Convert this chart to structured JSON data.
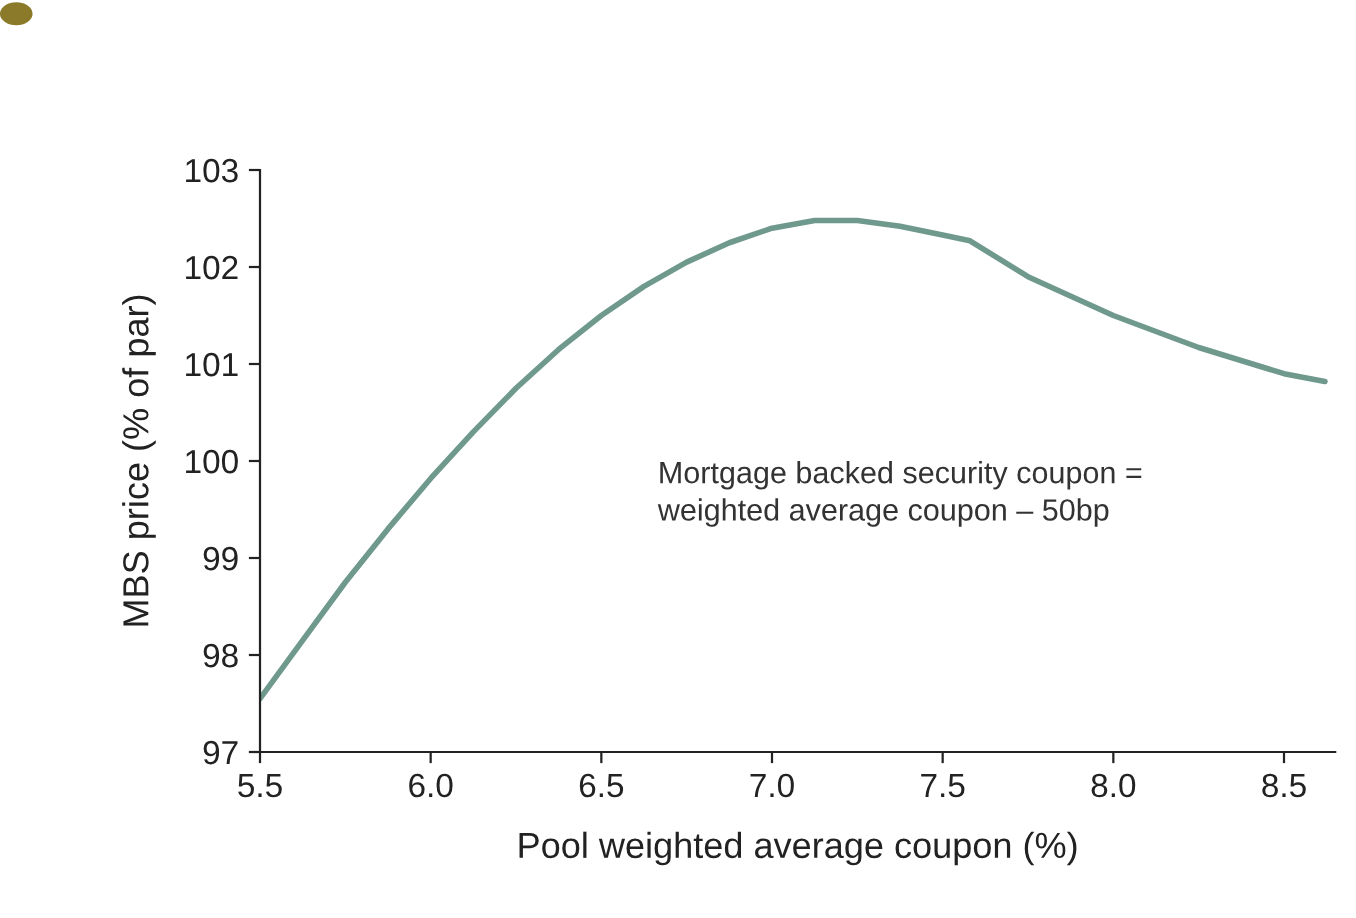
{
  "chart_data": {
    "type": "line",
    "xlabel": "Pool weighted average coupon (%)",
    "ylabel": "MBS price (% of par)",
    "annotations": [
      "Mortgage backed security coupon =\nweighted average coupon – 50bp"
    ],
    "x": [
      5.5,
      5.625,
      5.75,
      5.875,
      6.0,
      6.125,
      6.25,
      6.375,
      6.5,
      6.625,
      6.75,
      6.875,
      7.0,
      7.125,
      7.25,
      7.375,
      7.5,
      7.58,
      7.75,
      8.0,
      8.25,
      8.5,
      8.62
    ],
    "series": [
      {
        "color": "#6f998c",
        "values": [
          97.55,
          98.15,
          98.75,
          99.3,
          99.82,
          100.3,
          100.75,
          101.15,
          101.5,
          101.8,
          102.05,
          102.25,
          102.4,
          102.48,
          102.48,
          102.42,
          102.33,
          102.27,
          101.9,
          101.5,
          101.17,
          100.9,
          100.82
        ]
      }
    ],
    "xlim": [
      5.5,
      8.65
    ],
    "ylim": [
      97,
      103
    ],
    "xticks": [
      {
        "value": 5.5,
        "label": "5.5"
      },
      {
        "value": 6.0,
        "label": "6.0"
      },
      {
        "value": 6.5,
        "label": "6.5"
      },
      {
        "value": 7.0,
        "label": "7.0"
      },
      {
        "value": 7.5,
        "label": "7.5"
      },
      {
        "value": 8.0,
        "label": "8.0"
      },
      {
        "value": 8.5,
        "label": "8.5"
      }
    ],
    "yticks": [
      97,
      98,
      99,
      100,
      101,
      102,
      103
    ],
    "grid": false,
    "legend": false
  }
}
